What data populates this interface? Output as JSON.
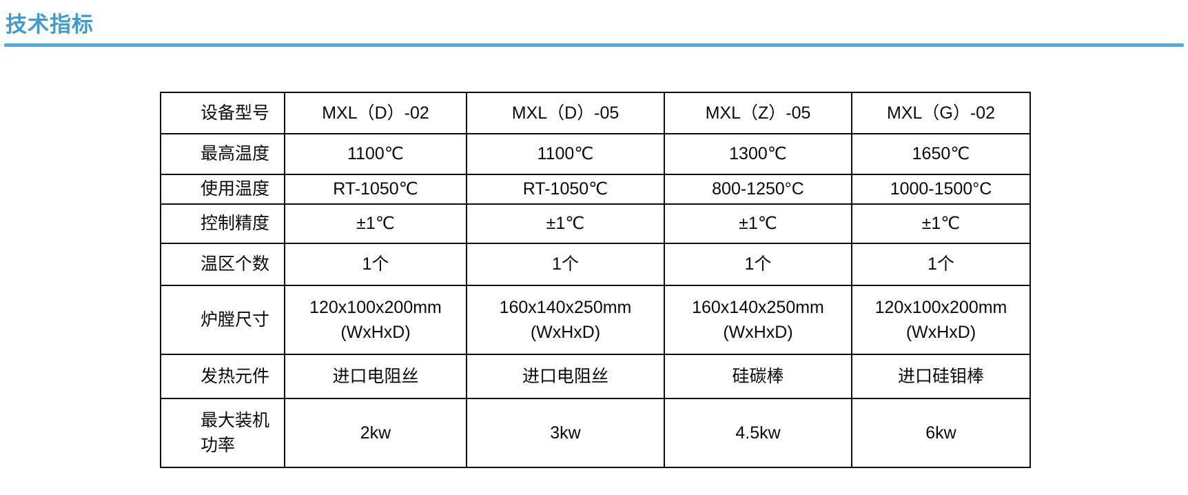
{
  "page": {
    "title": "技术指标"
  },
  "colors": {
    "accent": "#3e9cd1",
    "rule": "#55a9da",
    "border": "#0d0d0d"
  },
  "table": {
    "header": {
      "label": "设备型号",
      "models": [
        "MXL（D）-02",
        "MXL（D）-05",
        "MXL（Z）-05",
        "MXL（G）-02"
      ]
    },
    "rows": [
      {
        "key": "max-temperature",
        "label": "最高温度",
        "values": [
          "1100℃",
          "1100℃",
          "1300℃",
          "1650℃"
        ]
      },
      {
        "key": "working-temperature",
        "label": "使用温度",
        "values": [
          "RT-1050℃",
          "RT-1050℃",
          "800-1250°C",
          "1000-1500°C"
        ]
      },
      {
        "key": "control-accuracy",
        "label": "控制精度",
        "values": [
          "±1℃",
          "±1℃",
          "±1℃",
          "±1℃"
        ]
      },
      {
        "key": "temperature-zones",
        "label": "温区个数",
        "values": [
          "1个",
          "1个",
          "1个",
          "1个"
        ]
      },
      {
        "key": "chamber-size",
        "label": "炉膛尺寸",
        "values": [
          "120x100x200mm\n(WxHxD)",
          "160x140x250mm\n(WxHxD)",
          "160x140x250mm\n(WxHxD)",
          "120x100x200mm\n(WxHxD)"
        ]
      },
      {
        "key": "heating-element",
        "label": "发热元件",
        "values": [
          "进口电阻丝",
          "进口电阻丝",
          "硅碳棒",
          "进口硅钼棒"
        ]
      },
      {
        "key": "max-installed-power",
        "label": "最大装机功率",
        "values": [
          "2kw",
          "3kw",
          "4.5kw",
          "6kw"
        ]
      }
    ]
  }
}
